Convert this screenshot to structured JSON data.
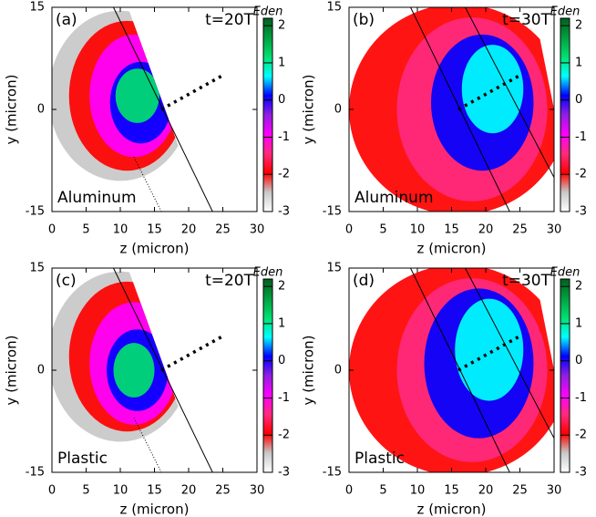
{
  "chart_data": [
    {
      "type": "heatmap",
      "panel_label": "(a)",
      "time_label": "t=20T",
      "material": "Aluminum",
      "xlabel": "z (micron)",
      "ylabel": "y (micron)",
      "xlim": [
        0,
        30
      ],
      "xticks": [
        0,
        5,
        10,
        15,
        20,
        25,
        30
      ],
      "ylim": [
        -15,
        15
      ],
      "yticks": [
        -15,
        0,
        15
      ],
      "colorbar_label": "Eden",
      "clim": [
        -3,
        2.2
      ],
      "cticks": [
        -3,
        -2,
        -1,
        0,
        1,
        2
      ],
      "colormap": [
        "#ffffff",
        "#c8c8c8",
        "#ff0000",
        "#ff2a7f",
        "#ff00ff",
        "#9020e0",
        "#0000ff",
        "#00ffff",
        "#00e070",
        "#00a040",
        "#006020"
      ]
    },
    {
      "type": "heatmap",
      "panel_label": "(b)",
      "time_label": "t=30T",
      "material": "Aluminum",
      "xlabel": "z (micron)",
      "ylabel": "y (micron)",
      "xlim": [
        0,
        30
      ],
      "xticks": [
        0,
        5,
        10,
        15,
        20,
        25,
        30
      ],
      "ylim": [
        -15,
        15
      ],
      "yticks": [
        -15,
        0,
        15
      ],
      "colorbar_label": "Eden",
      "clim": [
        -3,
        2.2
      ],
      "cticks": [
        -3,
        -2,
        -1,
        0,
        1,
        2
      ],
      "colormap": [
        "#ffffff",
        "#c8c8c8",
        "#ff0000",
        "#ff2a7f",
        "#ff00ff",
        "#9020e0",
        "#0000ff",
        "#00ffff",
        "#00e070",
        "#00a040",
        "#006020"
      ]
    },
    {
      "type": "heatmap",
      "panel_label": "(c)",
      "time_label": "t=20T",
      "material": "Plastic",
      "xlabel": "z (micron)",
      "ylabel": "y (micron)",
      "xlim": [
        0,
        30
      ],
      "xticks": [
        0,
        5,
        10,
        15,
        20,
        25,
        30
      ],
      "ylim": [
        -15,
        15
      ],
      "yticks": [
        -15,
        0,
        15
      ],
      "colorbar_label": "Eden",
      "clim": [
        -3,
        2.2
      ],
      "cticks": [
        -3,
        -2,
        -1,
        0,
        1,
        2
      ],
      "colormap": [
        "#ffffff",
        "#c8c8c8",
        "#ff0000",
        "#ff2a7f",
        "#ff00ff",
        "#9020e0",
        "#0000ff",
        "#00ffff",
        "#00e070",
        "#00a040",
        "#006020"
      ]
    },
    {
      "type": "heatmap",
      "panel_label": "(d)",
      "time_label": "t=30T",
      "material": "Plastic",
      "xlabel": "z (micron)",
      "ylabel": "y (micron)",
      "xlim": [
        0,
        30
      ],
      "xticks": [
        0,
        5,
        10,
        15,
        20,
        25,
        30
      ],
      "ylim": [
        -15,
        15
      ],
      "yticks": [
        -15,
        0,
        15
      ],
      "colorbar_label": "Eden",
      "clim": [
        -3,
        2.2
      ],
      "cticks": [
        -3,
        -2,
        -1,
        0,
        1,
        2
      ],
      "colormap": [
        "#ffffff",
        "#c8c8c8",
        "#ff0000",
        "#ff2a7f",
        "#ff00ff",
        "#9020e0",
        "#0000ff",
        "#00ffff",
        "#00e070",
        "#00a040",
        "#006020"
      ]
    }
  ]
}
